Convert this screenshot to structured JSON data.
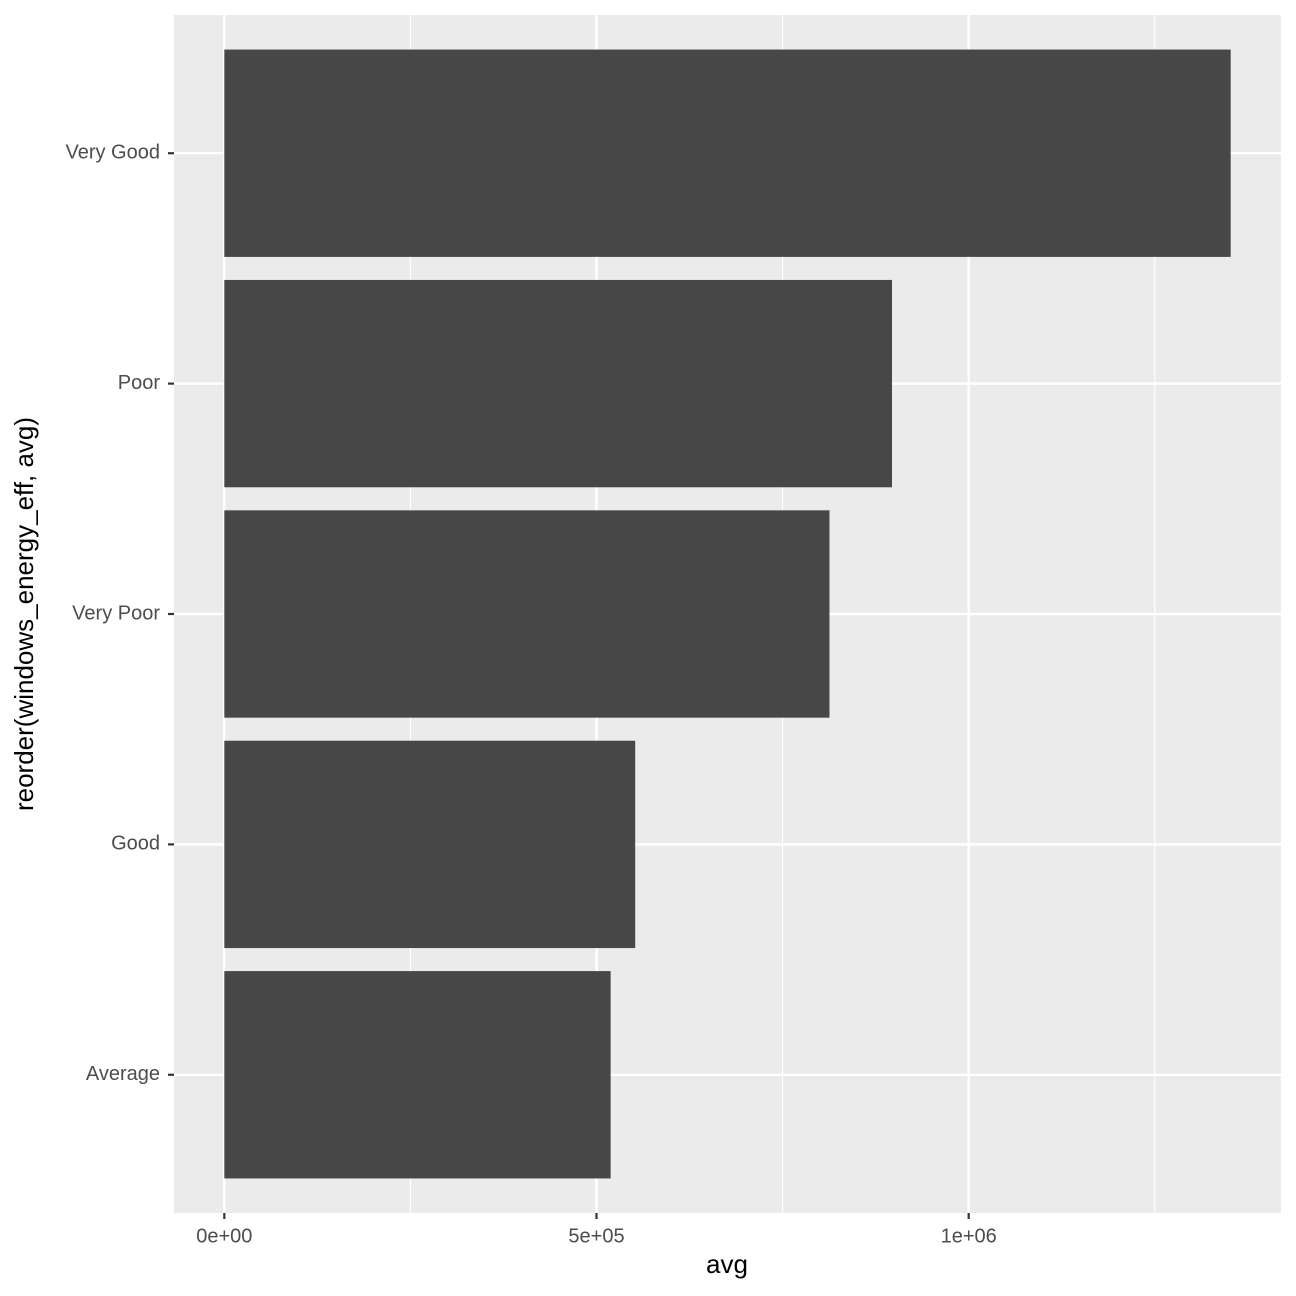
{
  "chart_data": {
    "type": "hbar",
    "categories": [
      "Very Good",
      "Poor",
      "Very Poor",
      "Good",
      "Average"
    ],
    "values": [
      1352000,
      897000,
      813000,
      552000,
      519000
    ],
    "color": "#474747",
    "xlabel": "avg",
    "ylabel": "reorder(windows_energy_eff, avg)",
    "xlim": [
      -67600,
      1419600
    ],
    "xticks": [
      {
        "value": 0,
        "label": "0e+00"
      },
      {
        "value": 500000,
        "label": "5e+05"
      },
      {
        "value": 1000000,
        "label": "1e+06"
      }
    ],
    "grid": true
  }
}
